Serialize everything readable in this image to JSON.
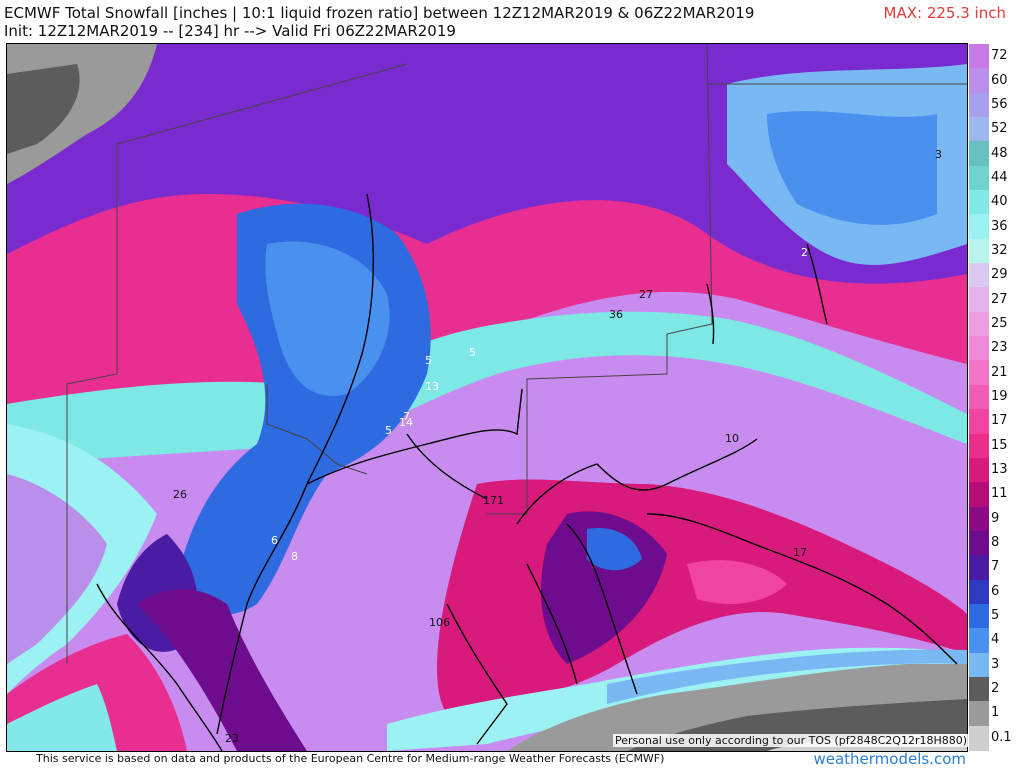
{
  "header": {
    "title_line1": "ECMWF Total Snowfall [inches | 10:1 liquid frozen ratio] between 12Z12MAR2019 & 06Z22MAR2019",
    "title_line2": "Init: 12Z12MAR2019 -- [234] hr --> Valid Fri 06Z22MAR2019",
    "max_label": "MAX: 225.3 inch"
  },
  "legend": {
    "items": [
      {
        "label": "72",
        "color": "#c77be6"
      },
      {
        "label": "60",
        "color": "#b98fea"
      },
      {
        "label": "56",
        "color": "#a7a0ee"
      },
      {
        "label": "52",
        "color": "#9db7ef"
      },
      {
        "label": "48",
        "color": "#67bfc0"
      },
      {
        "label": "44",
        "color": "#6fd4d0"
      },
      {
        "label": "40",
        "color": "#82e8e8"
      },
      {
        "label": "36",
        "color": "#9cf2f2"
      },
      {
        "label": "32",
        "color": "#b8f4ec"
      },
      {
        "label": "29",
        "color": "#d9c9ee"
      },
      {
        "label": "27",
        "color": "#e4b3ec"
      },
      {
        "label": "25",
        "color": "#ec9ee0"
      },
      {
        "label": "23",
        "color": "#f08ad8"
      },
      {
        "label": "21",
        "color": "#f275c8"
      },
      {
        "label": "19",
        "color": "#f25cb4"
      },
      {
        "label": "17",
        "color": "#f0449e"
      },
      {
        "label": "15",
        "color": "#ea2e8a"
      },
      {
        "label": "13",
        "color": "#d81a7c"
      },
      {
        "label": "11",
        "color": "#b40d7a"
      },
      {
        "label": "9",
        "color": "#8c0a86"
      },
      {
        "label": "8",
        "color": "#6e0c8e"
      },
      {
        "label": "7",
        "color": "#4a1ca4"
      },
      {
        "label": "6",
        "color": "#2e3ac2"
      },
      {
        "label": "5",
        "color": "#2e6ae0"
      },
      {
        "label": "4",
        "color": "#4a90ee"
      },
      {
        "label": "3",
        "color": "#7ab8f4"
      },
      {
        "label": "2",
        "color": "#5c5c5c"
      },
      {
        "label": "1",
        "color": "#9a9a9a"
      },
      {
        "label": "0.1",
        "color": "#cfcfcf"
      }
    ]
  },
  "map": {
    "labels": [
      "3",
      "2",
      "27",
      "36",
      "5",
      "5",
      "13",
      "7",
      "14",
      "5",
      "26",
      "6",
      "8",
      "10",
      "171",
      "17",
      "106",
      "23"
    ]
  },
  "footer": {
    "attribution": "This service is based on data and products of the European Centre for Medium-range Weather Forecasts (ECMWF)",
    "brand": "weathermodels.com",
    "tos": "Personal use only according to our TOS (pf2848C2Q12r18H880)"
  }
}
